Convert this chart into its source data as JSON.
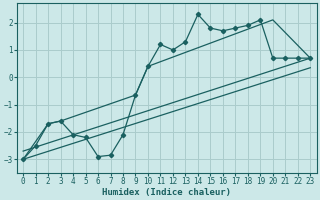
{
  "xlabel": "Humidex (Indice chaleur)",
  "bg_color": "#cce8e8",
  "grid_color": "#aacccc",
  "line_color": "#1a6060",
  "xlim": [
    -0.5,
    23.5
  ],
  "ylim": [
    -3.5,
    2.7
  ],
  "yticks": [
    -3,
    -2,
    -1,
    0,
    1,
    2
  ],
  "xticks": [
    0,
    1,
    2,
    3,
    4,
    5,
    6,
    7,
    8,
    9,
    10,
    11,
    12,
    13,
    14,
    15,
    16,
    17,
    18,
    19,
    20,
    21,
    22,
    23
  ],
  "line1_x": [
    0,
    1,
    2,
    3,
    4,
    5,
    6,
    7,
    8,
    9,
    10,
    11,
    12,
    13,
    14,
    15,
    16,
    17,
    18,
    19,
    20,
    21,
    22,
    23
  ],
  "line1_y": [
    -3.0,
    -2.5,
    -1.7,
    -1.6,
    -2.1,
    -2.2,
    -2.9,
    -2.85,
    -2.1,
    -0.65,
    0.4,
    1.2,
    1.0,
    1.3,
    2.3,
    1.8,
    1.7,
    1.8,
    1.9,
    2.1,
    0.7,
    0.7,
    0.7,
    0.7
  ],
  "line2_x": [
    0,
    2,
    3,
    9,
    10,
    20,
    23
  ],
  "line2_y": [
    -3.0,
    -1.7,
    -1.6,
    -0.65,
    0.4,
    2.1,
    0.7
  ],
  "line3_x": [
    0,
    23
  ],
  "line3_y": [
    -2.7,
    0.7
  ],
  "line4_x": [
    0,
    23
  ],
  "line4_y": [
    -3.0,
    0.35
  ]
}
